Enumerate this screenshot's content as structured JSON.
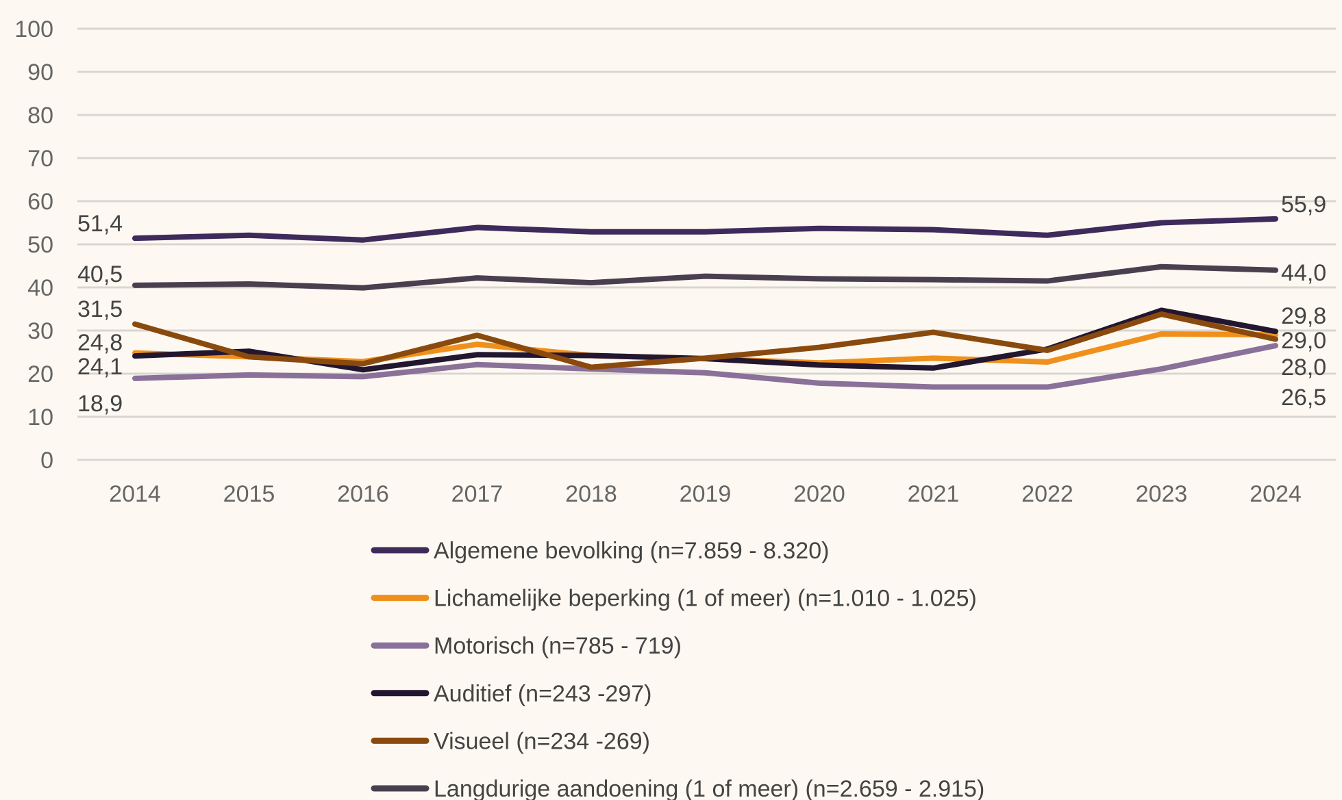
{
  "chart_data": {
    "type": "line",
    "title": "",
    "xlabel": "",
    "ylabel": "",
    "categories": [
      "2014",
      "2015",
      "2016",
      "2017",
      "2018",
      "2019",
      "2020",
      "2021",
      "2022",
      "2023",
      "2024"
    ],
    "ylim": [
      0,
      100
    ],
    "yticks": [
      "0",
      "10",
      "20",
      "30",
      "40",
      "50",
      "60",
      "70",
      "80",
      "90",
      "100"
    ],
    "grid": true,
    "legend_position": "bottom",
    "series": [
      {
        "name": "Algemene bevolking (n=7.859 - 8.320)",
        "color": "#3f2a5c",
        "values": [
          51.4,
          52.1,
          51.0,
          53.9,
          52.9,
          52.9,
          53.7,
          53.4,
          52.1,
          55.0,
          55.9
        ],
        "first_label": "51,4",
        "last_label": "55,9"
      },
      {
        "name": "Lichamelijke beperking (1 of meer) (n=1.010 - 1.025)",
        "color": "#f0901c",
        "values": [
          24.8,
          23.9,
          22.8,
          26.8,
          24.2,
          23.5,
          22.5,
          23.6,
          22.7,
          29.2,
          29.0
        ],
        "first_label": "24,8",
        "last_label": "29,0"
      },
      {
        "name": "Motorisch (n=785 - 719)",
        "color": "#8a7199",
        "values": [
          18.9,
          19.7,
          19.3,
          22.1,
          21.1,
          20.2,
          17.8,
          16.9,
          16.9,
          21.1,
          26.5
        ],
        "first_label": "18,9",
        "last_label": "26,5"
      },
      {
        "name": "Auditief (n=243 -297)",
        "color": "#23162f",
        "values": [
          24.1,
          25.2,
          20.9,
          24.4,
          24.2,
          23.5,
          22.0,
          21.3,
          25.7,
          34.7,
          29.8
        ],
        "first_label": "24,1",
        "last_label": "29,8"
      },
      {
        "name": "Visueel (n=234 -269)",
        "color": "#8a4a0e",
        "values": [
          31.5,
          23.9,
          22.3,
          28.9,
          21.5,
          23.6,
          26.1,
          29.6,
          25.4,
          33.8,
          28.0
        ],
        "first_label": "31,5",
        "last_label": "28,0"
      },
      {
        "name": "Langdurige aandoening (1 of meer) (n=2.659 - 2.915)",
        "color": "#4a3f4f",
        "values": [
          40.5,
          40.8,
          39.9,
          42.2,
          41.1,
          42.6,
          42.0,
          41.8,
          41.5,
          44.8,
          44.0
        ],
        "first_label": "40,5",
        "last_label": "44,0"
      }
    ]
  }
}
